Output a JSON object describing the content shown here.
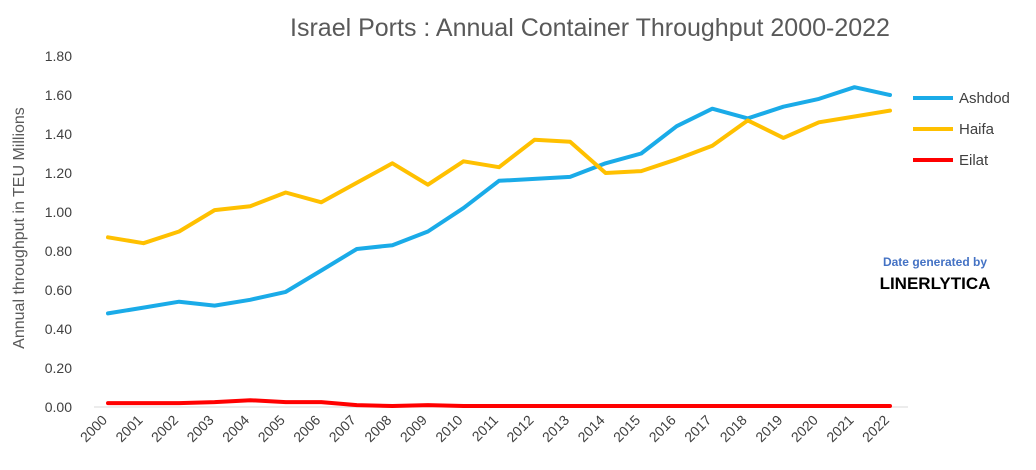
{
  "chart_data": {
    "type": "line",
    "title": "Israel Ports : Annual Container Throughput 2000-2022",
    "xlabel": "",
    "ylabel": "Annual throughput in TEU Millions",
    "ylim": [
      0,
      1.8
    ],
    "yticks": [
      "0.00",
      "0.20",
      "0.40",
      "0.60",
      "0.80",
      "1.00",
      "1.20",
      "1.40",
      "1.60",
      "1.80"
    ],
    "grid": false,
    "legend_position": "right",
    "categories": [
      "2000",
      "2001",
      "2002",
      "2003",
      "2004",
      "2005",
      "2006",
      "2007",
      "2008",
      "2009",
      "2010",
      "2011",
      "2012",
      "2013",
      "2014",
      "2015",
      "2016",
      "2017",
      "2018",
      "2019",
      "2020",
      "2021",
      "2022"
    ],
    "series": [
      {
        "name": "Ashdod",
        "color": "#1AABE8",
        "values": [
          0.48,
          0.51,
          0.54,
          0.52,
          0.55,
          0.59,
          0.7,
          0.81,
          0.83,
          0.9,
          1.02,
          1.16,
          1.17,
          1.18,
          1.25,
          1.3,
          1.44,
          1.53,
          1.48,
          1.54,
          1.58,
          1.64,
          1.6
        ]
      },
      {
        "name": "Haifa",
        "color": "#FFC000",
        "values": [
          0.87,
          0.84,
          0.9,
          1.01,
          1.03,
          1.1,
          1.05,
          1.15,
          1.25,
          1.14,
          1.26,
          1.23,
          1.37,
          1.36,
          1.2,
          1.21,
          1.27,
          1.34,
          1.47,
          1.38,
          1.46,
          1.49,
          1.52
        ]
      },
      {
        "name": "Eilat",
        "color": "#FF0000",
        "values": [
          0.02,
          0.02,
          0.02,
          0.025,
          0.035,
          0.025,
          0.025,
          0.01,
          0.005,
          0.01,
          0.005,
          0.005,
          0.005,
          0.005,
          0.005,
          0.005,
          0.005,
          0.005,
          0.005,
          0.005,
          0.005,
          0.005,
          0.005
        ]
      }
    ],
    "annotations": {
      "credit_line": "Date generated by",
      "credit_brand": "LINERLYTICA"
    }
  }
}
